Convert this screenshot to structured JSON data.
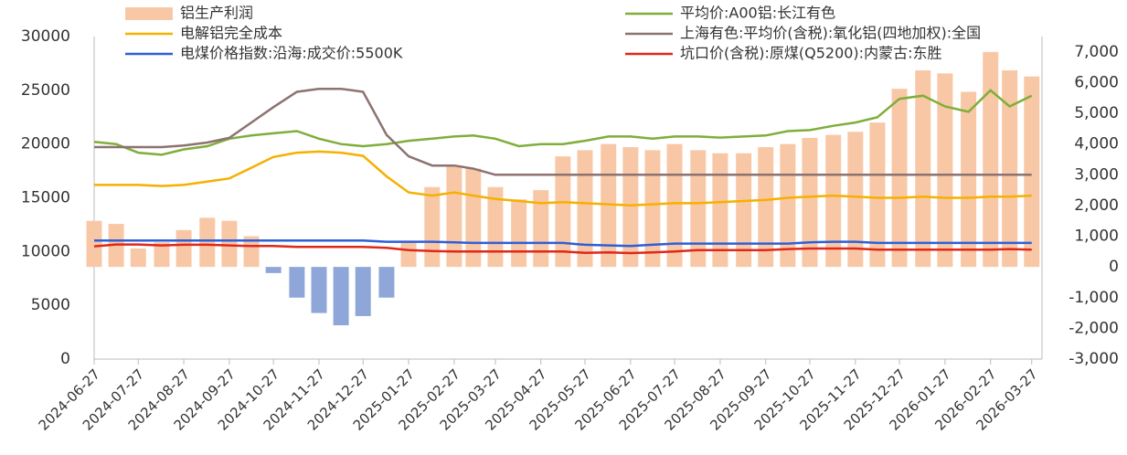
{
  "chart_data": {
    "type": "bar-line",
    "x": [
      "2024-06-27",
      "2024-07-12",
      "2024-07-27",
      "2024-08-12",
      "2024-08-27",
      "2024-09-12",
      "2024-09-27",
      "2024-10-12",
      "2024-10-27",
      "2024-11-12",
      "2024-11-27",
      "2024-12-12",
      "2024-12-27",
      "2025-01-12",
      "2025-01-27",
      "2025-02-12",
      "2025-02-27",
      "2025-03-12",
      "2025-03-27",
      "2025-04-12",
      "2025-04-27",
      "2025-05-12",
      "2025-05-27",
      "2025-06-12",
      "2025-06-27",
      "2025-07-12",
      "2025-07-27",
      "2025-08-12",
      "2025-08-27",
      "2025-09-12",
      "2025-09-27",
      "2025-10-12",
      "2025-10-27",
      "2025-11-12",
      "2025-11-27",
      "2025-12-12",
      "2025-12-27",
      "2026-01-12",
      "2026-01-27",
      "2026-02-12",
      "2026-02-27",
      "2026-03-12",
      "2026-03-27"
    ],
    "xlim": [
      "2024-06-27",
      "2026-04-03"
    ],
    "xticks": [
      "2024-06-27",
      "2024-07-27",
      "2024-08-27",
      "2024-09-27",
      "2024-10-27",
      "2024-11-27",
      "2024-12-27",
      "2025-01-27",
      "2025-02-27",
      "2025-03-27",
      "2025-04-27",
      "2025-05-27",
      "2025-06-27",
      "2025-07-27",
      "2025-08-27",
      "2025-09-27",
      "2025-10-27",
      "2025-11-27",
      "2025-12-27",
      "2026-01-27",
      "2026-02-27",
      "2026-03-27"
    ],
    "ylim": [
      0,
      30000
    ],
    "yticks": [
      0,
      5000,
      10000,
      15000,
      20000,
      25000,
      30000
    ],
    "y2lim": [
      -3000,
      7500
    ],
    "y2ticks": [
      {
        "value": -3000,
        "label": "-3,000"
      },
      {
        "value": -2000,
        "label": "-2,000"
      },
      {
        "value": -1000,
        "label": "-1,000"
      },
      0,
      {
        "value": 1000,
        "label": "1,000"
      },
      {
        "value": 2000,
        "label": "2,000"
      },
      {
        "value": 3000,
        "label": "3,000"
      },
      {
        "value": 4000,
        "label": "4,000"
      },
      {
        "value": 5000,
        "label": "5,000"
      },
      {
        "value": 6000,
        "label": "6,000"
      },
      {
        "value": 7000,
        "label": "7,000"
      }
    ],
    "series": [
      {
        "name": "铝生产利润",
        "kind": "bar",
        "axis": "y2",
        "color": "#f8c8a6",
        "negative_color": "#8ea7d8",
        "values": [
          1500,
          1400,
          600,
          800,
          1200,
          1600,
          1500,
          1000,
          -200,
          -1000,
          -1500,
          -1900,
          -1600,
          -1000,
          800,
          2600,
          3300,
          3200,
          2600,
          2200,
          2500,
          3600,
          3800,
          4000,
          3900,
          3800,
          4000,
          3800,
          3700,
          3700,
          3900,
          4000,
          4200,
          4300,
          4400,
          4700,
          5800,
          6400,
          6300,
          5700,
          7000,
          6400,
          6200
        ]
      },
      {
        "name": "平均价:A00铝:长江有色",
        "kind": "line",
        "color": "#7fae3a",
        "values": [
          20200,
          20000,
          19200,
          19000,
          19500,
          19800,
          20500,
          20800,
          21000,
          21200,
          20500,
          20000,
          19800,
          20000,
          20300,
          20500,
          20700,
          20800,
          20500,
          19800,
          20000,
          20000,
          20300,
          20700,
          20700,
          20500,
          20700,
          20700,
          20600,
          20700,
          20800,
          21200,
          21300,
          21700,
          22000,
          22500,
          24200,
          24500,
          23500,
          23000,
          25000,
          23500,
          24500
        ]
      },
      {
        "name": "电解铝完全成本",
        "kind": "line",
        "color": "#f5b000",
        "values": [
          16200,
          16200,
          16200,
          16100,
          16200,
          16500,
          16800,
          17800,
          18800,
          19200,
          19300,
          19200,
          18900,
          17000,
          15500,
          15200,
          15500,
          15200,
          14900,
          14700,
          14500,
          14600,
          14500,
          14400,
          14300,
          14400,
          14500,
          14500,
          14600,
          14700,
          14800,
          15000,
          15100,
          15200,
          15100,
          15000,
          15000,
          15100,
          15000,
          15000,
          15100,
          15100,
          15200
        ]
      },
      {
        "name": "上海有色:平均价(含税):氧化铝(四地加权):全国",
        "kind": "line",
        "axis": "y2",
        "color": "#8c7270",
        "values": [
          3900,
          3900,
          3900,
          3900,
          3950,
          4050,
          4200,
          4700,
          5200,
          5700,
          5800,
          5800,
          5700,
          4300,
          3600,
          3300,
          3300,
          3200,
          3000,
          3000,
          3000,
          3000,
          3000,
          3000,
          3000,
          3000,
          3000,
          3000,
          3000,
          3000,
          3000,
          3000,
          3000,
          3000,
          3000,
          3000,
          3000,
          3000,
          3000,
          3000,
          3000,
          3000,
          3000
        ]
      },
      {
        "name": "电煤价格指数:沿海:成交价:5500K",
        "kind": "line",
        "axis": "y2",
        "color": "#2e5fd8",
        "values": [
          860,
          860,
          860,
          860,
          860,
          860,
          860,
          860,
          860,
          860,
          860,
          860,
          860,
          820,
          820,
          820,
          800,
          780,
          780,
          780,
          780,
          780,
          720,
          700,
          680,
          720,
          760,
          760,
          760,
          760,
          760,
          760,
          800,
          820,
          820,
          780,
          780,
          780,
          780,
          780,
          780,
          780,
          780
        ]
      },
      {
        "name": "坑口价(含税):原煤(Q5200):内蒙古:东胜",
        "kind": "line",
        "axis": "y2",
        "color": "#e0281a",
        "values": [
          670,
          730,
          730,
          700,
          720,
          720,
          700,
          680,
          680,
          650,
          650,
          650,
          650,
          620,
          550,
          520,
          500,
          500,
          500,
          500,
          500,
          500,
          460,
          470,
          450,
          470,
          500,
          550,
          550,
          550,
          550,
          580,
          600,
          600,
          600,
          560,
          560,
          560,
          560,
          560,
          560,
          580,
          560
        ]
      }
    ]
  }
}
